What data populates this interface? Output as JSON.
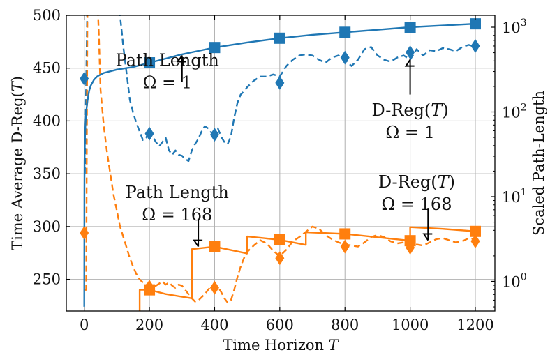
{
  "chart_data": {
    "type": "line",
    "xlabel": "Time Horizon T",
    "ylabel_left": "Time Average D-Reg(T)",
    "ylabel_right": "Scaled Path-Length",
    "xlim": [
      -55,
      1260
    ],
    "ylim_left": [
      220,
      500
    ],
    "ylim_right_log10": [
      -0.35,
      3.14
    ],
    "grid": true,
    "x_ticks": [
      0,
      200,
      400,
      600,
      800,
      1000,
      1200
    ],
    "x_tick_labels": [
      "0",
      "200",
      "400",
      "600",
      "800",
      "1000",
      "1200"
    ],
    "y_left_ticks": [
      250,
      300,
      350,
      400,
      450,
      500
    ],
    "y_left_tick_labels": [
      "250",
      "300",
      "350",
      "400",
      "450",
      "500"
    ],
    "y_right_tick_exponents": [
      0,
      1,
      2,
      3
    ],
    "y_right_tick_labels": [
      "10",
      "10",
      "10",
      "10"
    ],
    "series": [
      {
        "name": "D-Reg(T) Ω = 1",
        "color": "#1f77b4",
        "style": "dashed",
        "axis": "left",
        "x": [
          2,
          10,
          20,
          30,
          40,
          50,
          60,
          70,
          80,
          90,
          100,
          110,
          120,
          130,
          140,
          150,
          160,
          170,
          180,
          190,
          200,
          210,
          220,
          230,
          240,
          250,
          260,
          270,
          280,
          290,
          300,
          310,
          320,
          330,
          340,
          350,
          360,
          370,
          380,
          390,
          400,
          410,
          420,
          430,
          440,
          450,
          460,
          470,
          480,
          490,
          500,
          520,
          540,
          560,
          580,
          600,
          620,
          640,
          660,
          680,
          700,
          720,
          740,
          760,
          780,
          800,
          820,
          840,
          860,
          880,
          900,
          920,
          940,
          960,
          980,
          1000,
          1020,
          1040,
          1060,
          1080,
          1100,
          1120,
          1140,
          1160,
          1180,
          1200
        ],
        "y": [
          350,
          520,
          520,
          520,
          520,
          520,
          520,
          520,
          520,
          520,
          520,
          500,
          470,
          445,
          420,
          408,
          398,
          390,
          382,
          384,
          392,
          385,
          380,
          376,
          380,
          384,
          372,
          368,
          372,
          368,
          367,
          364,
          362,
          372,
          378,
          383,
          390,
          395,
          393,
          389,
          389,
          393,
          385,
          380,
          378,
          385,
          403,
          417,
          425,
          428,
          432,
          438,
          442,
          442,
          444,
          442,
          452,
          458,
          462,
          463,
          462,
          458,
          455,
          460,
          462,
          458,
          452,
          458,
          468,
          470,
          462,
          458,
          456,
          460,
          462,
          458,
          468,
          462,
          467,
          466,
          469,
          468,
          466,
          470,
          472,
          470
        ]
      },
      {
        "name": "D-Reg(T) Ω = 168",
        "color": "#ff7f0e",
        "style": "dashed",
        "axis": "left",
        "x": [
          2,
          6,
          10,
          15,
          20,
          25,
          30,
          35,
          40,
          45,
          50,
          60,
          70,
          80,
          90,
          100,
          110,
          120,
          130,
          140,
          150,
          160,
          170,
          180,
          190,
          200,
          210,
          220,
          230,
          240,
          250,
          260,
          270,
          280,
          290,
          300,
          310,
          320,
          330,
          340,
          350,
          360,
          370,
          380,
          390,
          400,
          410,
          420,
          430,
          440,
          450,
          460,
          470,
          480,
          490,
          500,
          520,
          540,
          560,
          580,
          600,
          620,
          640,
          660,
          680,
          700,
          720,
          740,
          760,
          780,
          800,
          820,
          840,
          860,
          880,
          900,
          920,
          940,
          960,
          980,
          1000,
          1020,
          1040,
          1060,
          1080,
          1100,
          1120,
          1140,
          1160,
          1180,
          1200
        ],
        "y": [
          240,
          240,
          520,
          520,
          520,
          520,
          520,
          520,
          520,
          480,
          430,
          395,
          370,
          350,
          330,
          315,
          300,
          290,
          280,
          270,
          262,
          255,
          250,
          247,
          245,
          245,
          243,
          244,
          246,
          248,
          245,
          247,
          244,
          242,
          245,
          244,
          240,
          236,
          232,
          229,
          230,
          233,
          236,
          240,
          244,
          245,
          243,
          238,
          232,
          228,
          230,
          240,
          252,
          262,
          270,
          276,
          282,
          287,
          284,
          277,
          272,
          278,
          286,
          290,
          295,
          300,
          298,
          292,
          288,
          285,
          283,
          282,
          281,
          285,
          290,
          292,
          290,
          286,
          284,
          285,
          286,
          283,
          282,
          285,
          288,
          289,
          287,
          285,
          286,
          289,
          288
        ]
      },
      {
        "name": "Path Length Ω = 1",
        "color": "#1f77b4",
        "style": "solid",
        "axis": "right",
        "x": [
          0,
          0.5,
          1,
          2,
          3,
          5,
          7,
          10,
          15,
          20,
          30,
          40,
          60,
          80,
          100,
          150,
          200,
          250,
          300,
          350,
          400,
          500,
          600,
          700,
          800,
          900,
          1000,
          1100,
          1200
        ],
        "y": [
          -0.3,
          1.0,
          1.42,
          1.65,
          1.8,
          1.95,
          2.03,
          2.13,
          2.25,
          2.31,
          2.38,
          2.42,
          2.46,
          2.48,
          2.5,
          2.53,
          2.58,
          2.63,
          2.68,
          2.72,
          2.76,
          2.82,
          2.87,
          2.91,
          2.94,
          2.97,
          3.0,
          3.02,
          3.04
        ]
      },
      {
        "name": "Path Length Ω = 168",
        "color": "#ff7f0e",
        "style": "solid",
        "axis": "right",
        "x": [
          170,
          170,
          200,
          250,
          330,
          330,
          400,
          500,
          500,
          600,
          680,
          680,
          800,
          900,
          1000,
          1000,
          1100,
          1200
        ],
        "y": [
          -0.35,
          -0.1,
          -0.1,
          -0.15,
          -0.2,
          0.38,
          0.41,
          0.33,
          0.53,
          0.49,
          0.43,
          0.58,
          0.56,
          0.52,
          0.48,
          0.64,
          0.62,
          0.59
        ]
      }
    ],
    "markers": [
      {
        "name": "D-Reg Ω = 1 markers",
        "shape": "diamond",
        "color": "#1f77b4",
        "axis": "left",
        "x": [
          0,
          200,
          400,
          600,
          800,
          1000,
          1200
        ],
        "y": [
          440,
          388,
          387,
          436,
          460,
          465,
          471
        ]
      },
      {
        "name": "D-Reg Ω = 168 markers",
        "shape": "diamond",
        "color": "#ff7f0e",
        "axis": "left",
        "x": [
          0,
          200,
          400,
          600,
          800,
          1000,
          1200
        ],
        "y": [
          294,
          243,
          242,
          270,
          281,
          280,
          286
        ]
      },
      {
        "name": "Path Length Ω = 1 markers",
        "shape": "square",
        "color": "#1f77b4",
        "axis": "right",
        "x": [
          200,
          400,
          600,
          800,
          1000,
          1200
        ],
        "y": [
          2.58,
          2.76,
          2.87,
          2.94,
          3.0,
          3.04
        ]
      },
      {
        "name": "Path Length Ω = 168 markers",
        "shape": "square",
        "color": "#ff7f0e",
        "axis": "right",
        "x": [
          200,
          400,
          600,
          800,
          1000,
          1200
        ],
        "y": [
          -0.1,
          0.41,
          0.49,
          0.56,
          0.48,
          0.59
        ]
      }
    ],
    "annotations": [
      {
        "lines": [
          "Path Length",
          "Ω = 1"
        ],
        "label_pos": [
          255,
          452
        ],
        "arrow_from": [
          300,
          437
        ],
        "arrow_to": [
          300,
          462
        ]
      },
      {
        "lines": [
          "D-Reg(T)",
          "Ω = 1"
        ],
        "label_pos": [
          1000,
          405
        ],
        "arrow_from": [
          1000,
          425
        ],
        "arrow_to": [
          1000,
          458
        ]
      },
      {
        "lines": [
          "Path Length",
          "Ω = 168"
        ],
        "label_pos": [
          285,
          327
        ],
        "arrow_from": [
          350,
          307
        ],
        "arrow_to": [
          350,
          281
        ]
      },
      {
        "lines": [
          "D-Reg(T)",
          "Ω = 168"
        ],
        "label_pos": [
          1020,
          337
        ],
        "arrow_from": [
          1055,
          317
        ],
        "arrow_to": [
          1055,
          287
        ]
      }
    ]
  }
}
